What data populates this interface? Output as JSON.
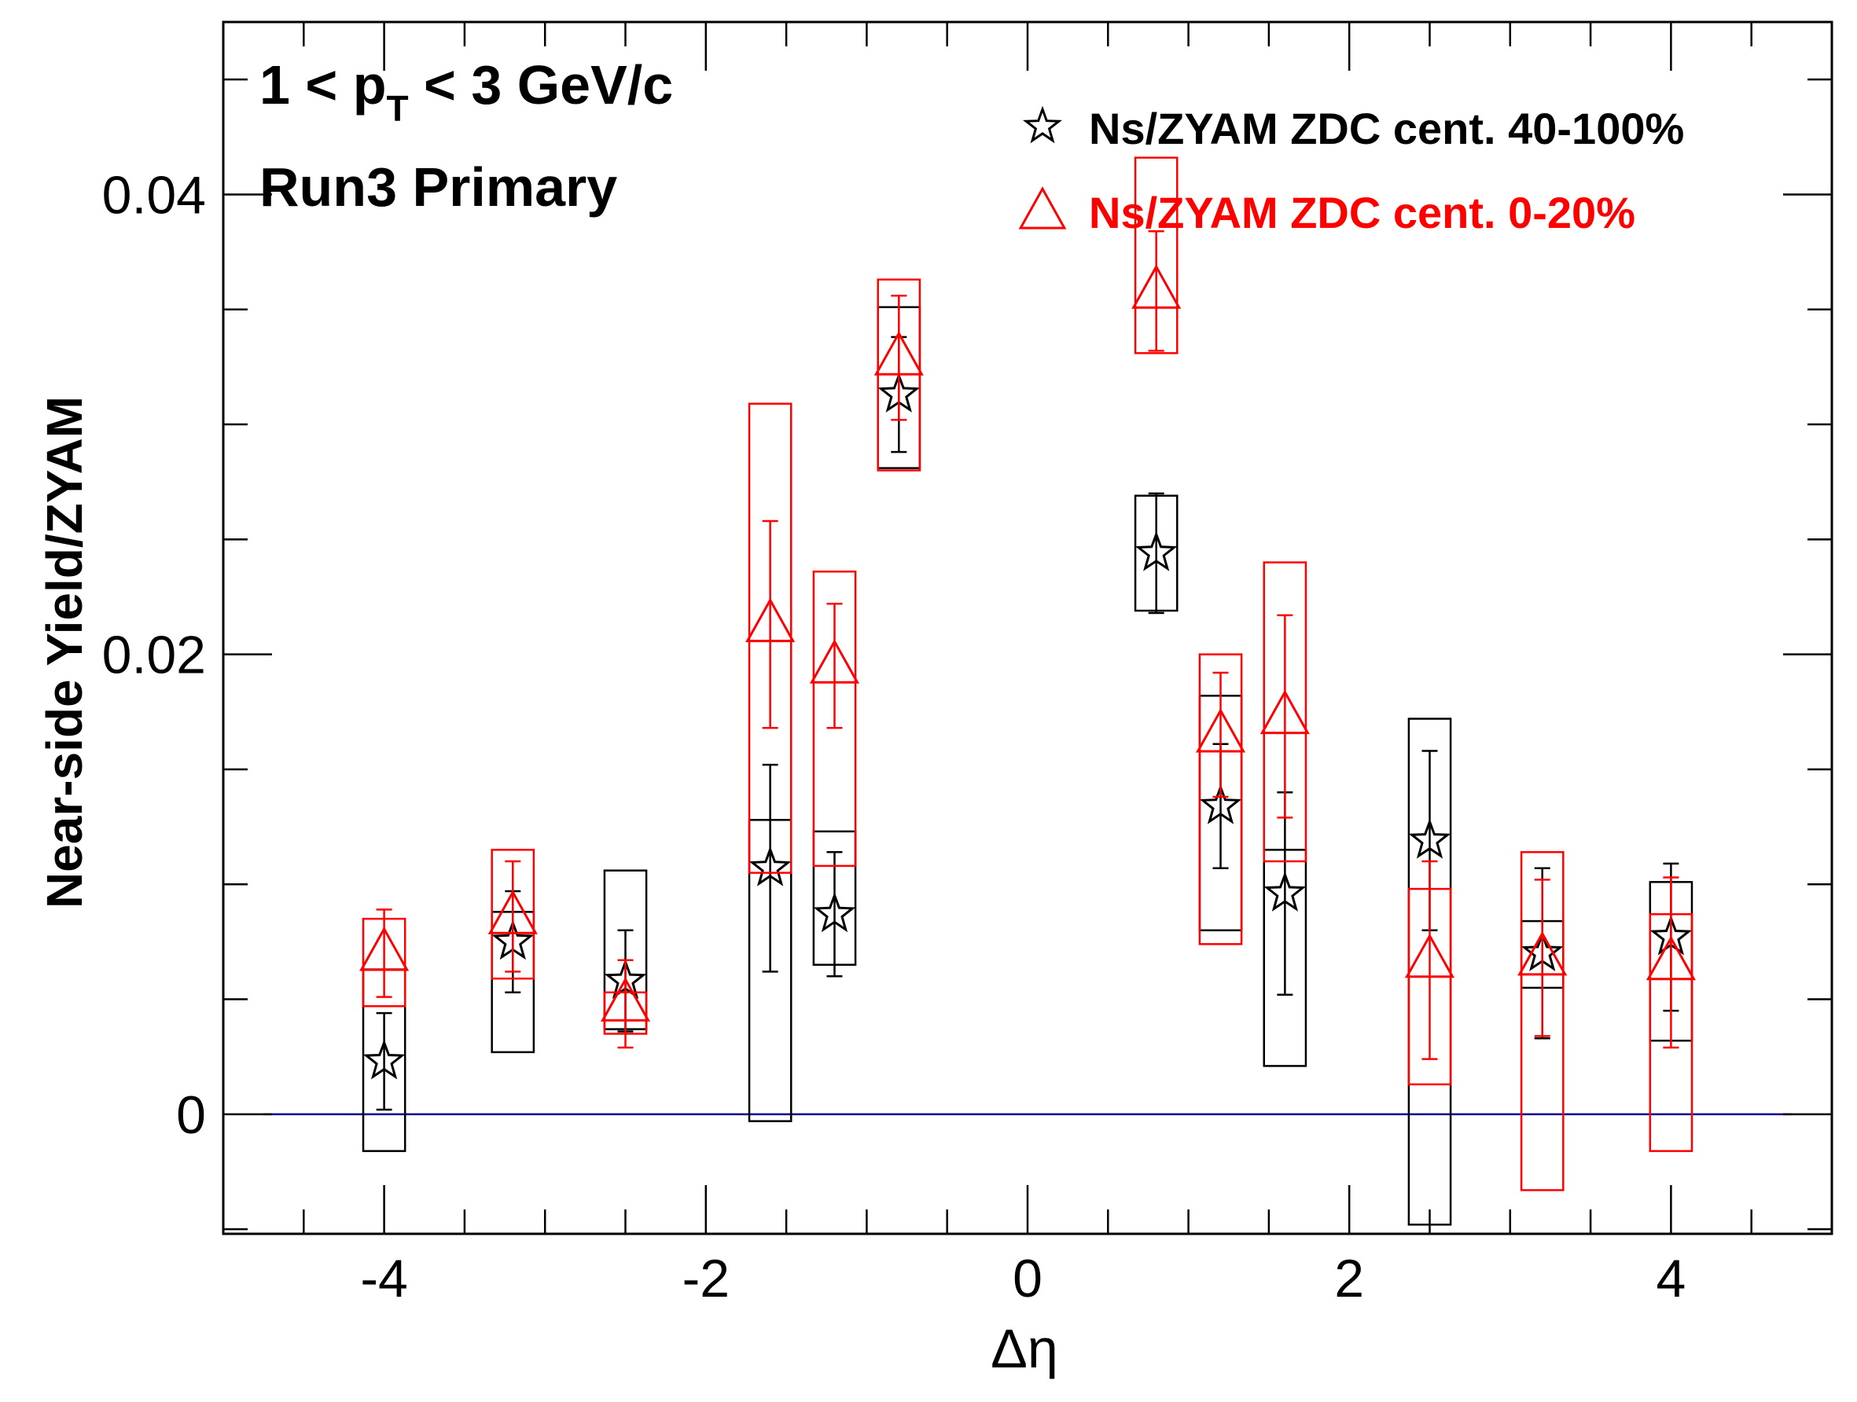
{
  "chart_data": {
    "type": "scatter",
    "xlabel": "Δη",
    "ylabel": "Near-side Yield/ZYAM",
    "xlim": [
      -5.0,
      5.0
    ],
    "ylim": [
      -0.0052,
      0.0475
    ],
    "x_ticks": [
      {
        "value": -4,
        "label": "-4"
      },
      {
        "value": -2,
        "label": "-2"
      },
      {
        "value": 0,
        "label": "0"
      },
      {
        "value": 2,
        "label": "2"
      },
      {
        "value": 4,
        "label": "4"
      }
    ],
    "y_ticks": [
      {
        "value": 0,
        "label": "0"
      },
      {
        "value": 0.02,
        "label": "0.02"
      },
      {
        "value": 0.04,
        "label": "0.04"
      }
    ],
    "annotations": {
      "pt_prefix": "1 < p",
      "pt_sub": "T",
      "pt_suffix": " < 3 GeV/c",
      "run": "Run3 Primary"
    },
    "legend_position": "top-right",
    "zero_line": {
      "y": 0,
      "color": "#00008b"
    },
    "series": [
      {
        "name": "Ns/ZYAM ZDC cent. 40-100%",
        "marker": "open-star",
        "color": "#000000",
        "box_half_width": 0.13,
        "points": [
          {
            "x": -4.0,
            "y": 0.0023,
            "err": 0.0021,
            "sys_low": -0.0016,
            "sys_high": 0.0063
          },
          {
            "x": -3.2,
            "y": 0.0075,
            "err": 0.0022,
            "sys_low": 0.0027,
            "sys_high": 0.0088
          },
          {
            "x": -2.5,
            "y": 0.0058,
            "err": 0.0022,
            "sys_low": 0.0037,
            "sys_high": 0.0106
          },
          {
            "x": -1.6,
            "y": 0.0107,
            "err": 0.0045,
            "sys_low": -0.0003,
            "sys_high": 0.0128
          },
          {
            "x": -1.2,
            "y": 0.0087,
            "err": 0.0027,
            "sys_low": 0.0065,
            "sys_high": 0.0123
          },
          {
            "x": -0.8,
            "y": 0.0313,
            "err": 0.0025,
            "sys_low": 0.0281,
            "sys_high": 0.0351
          },
          {
            "x": 0.8,
            "y": 0.0244,
            "err": 0.0026,
            "sys_low": 0.0219,
            "sys_high": 0.0269
          },
          {
            "x": 1.2,
            "y": 0.0134,
            "err": 0.0027,
            "sys_low": 0.008,
            "sys_high": 0.0182
          },
          {
            "x": 1.6,
            "y": 0.0096,
            "err": 0.0044,
            "sys_low": 0.0021,
            "sys_high": 0.0115
          },
          {
            "x": 2.5,
            "y": 0.0119,
            "err": 0.0039,
            "sys_low": -0.0048,
            "sys_high": 0.0172
          },
          {
            "x": 3.2,
            "y": 0.007,
            "err": 0.0037,
            "sys_low": 0.0055,
            "sys_high": 0.0084
          },
          {
            "x": 4.0,
            "y": 0.0077,
            "err": 0.0032,
            "sys_low": 0.0032,
            "sys_high": 0.0101
          }
        ]
      },
      {
        "name": "Ns/ZYAM ZDC cent. 0-20%",
        "marker": "open-triangle",
        "color": "#ff0000",
        "box_half_width": 0.13,
        "points": [
          {
            "x": -4.0,
            "y": 0.007,
            "err": 0.0019,
            "sys_low": 0.0047,
            "sys_high": 0.0085
          },
          {
            "x": -3.2,
            "y": 0.0086,
            "err": 0.0024,
            "sys_low": 0.0059,
            "sys_high": 0.0115
          },
          {
            "x": -2.5,
            "y": 0.0048,
            "err": 0.0019,
            "sys_low": 0.0035,
            "sys_high": 0.0053
          },
          {
            "x": -1.6,
            "y": 0.0213,
            "err": 0.0045,
            "sys_low": 0.0105,
            "sys_high": 0.0309
          },
          {
            "x": -1.2,
            "y": 0.0195,
            "err": 0.0027,
            "sys_low": 0.0108,
            "sys_high": 0.0236
          },
          {
            "x": -0.8,
            "y": 0.0329,
            "err": 0.0027,
            "sys_low": 0.028,
            "sys_high": 0.0363
          },
          {
            "x": 0.8,
            "y": 0.0358,
            "err": 0.0026,
            "sys_low": 0.0331,
            "sys_high": 0.0416
          },
          {
            "x": 1.2,
            "y": 0.0165,
            "err": 0.0027,
            "sys_low": 0.0074,
            "sys_high": 0.02
          },
          {
            "x": 1.6,
            "y": 0.0173,
            "err": 0.0044,
            "sys_low": 0.011,
            "sys_high": 0.024
          },
          {
            "x": 2.5,
            "y": 0.0067,
            "err": 0.0043,
            "sys_low": 0.0013,
            "sys_high": 0.0098
          },
          {
            "x": 3.2,
            "y": 0.0068,
            "err": 0.0034,
            "sys_low": -0.0033,
            "sys_high": 0.0114
          },
          {
            "x": 4.0,
            "y": 0.0066,
            "err": 0.0037,
            "sys_low": -0.0016,
            "sys_high": 0.0087
          }
        ]
      }
    ]
  }
}
